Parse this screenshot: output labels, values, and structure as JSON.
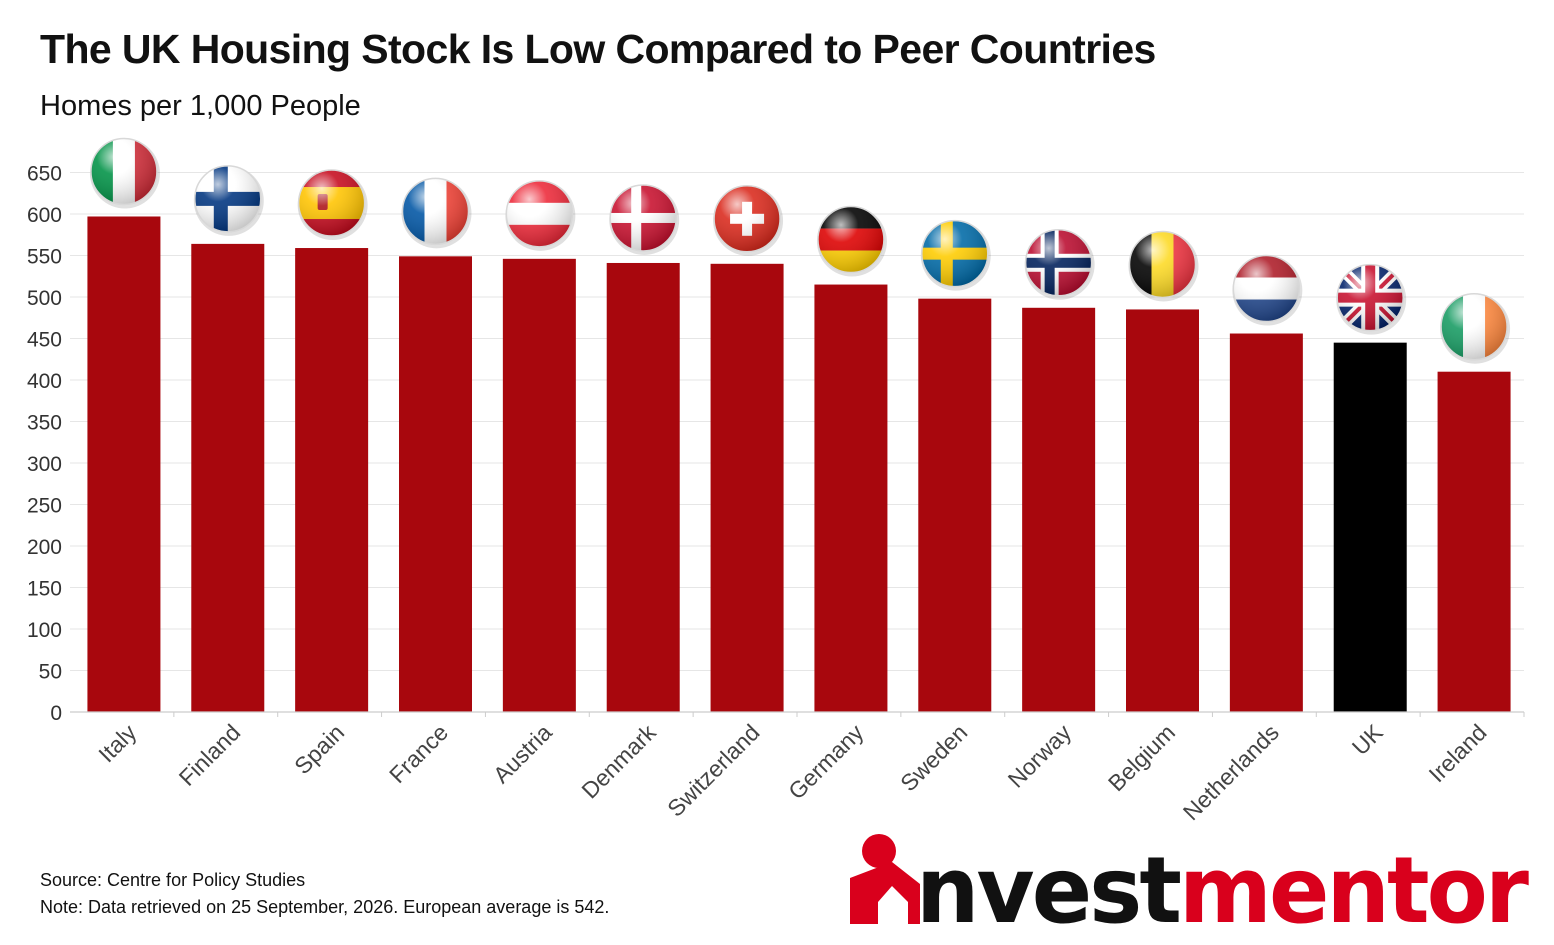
{
  "title": "The UK Housing Stock Is Low Compared to Peer Countries",
  "subtitle": "Homes per 1,000 People",
  "source": "Source: Centre for Policy Studies",
  "note": "Note: Data retrieved on 25 September, 2026. European average is 542.",
  "logo": {
    "text": "nvestmentor",
    "highlight_color": "#d9001c",
    "text_color": "#111111"
  },
  "chart_data": {
    "type": "bar",
    "categories": [
      "Italy",
      "Finland",
      "Spain",
      "France",
      "Austria",
      "Denmark",
      "Switzerland",
      "Germany",
      "Sweden",
      "Norway",
      "Belgium",
      "Netherlands",
      "UK",
      "Ireland"
    ],
    "values": [
      597,
      564,
      559,
      549,
      546,
      541,
      540,
      515,
      498,
      487,
      485,
      456,
      445,
      410
    ],
    "bar_colors": [
      "#a8070d",
      "#a8070d",
      "#a8070d",
      "#a8070d",
      "#a8070d",
      "#a8070d",
      "#a8070d",
      "#a8070d",
      "#a8070d",
      "#a8070d",
      "#a8070d",
      "#a8070d",
      "#000000",
      "#a8070d"
    ],
    "flag_icons": [
      "italy-flag-icon",
      "finland-flag-icon",
      "spain-flag-icon",
      "france-flag-icon",
      "austria-flag-icon",
      "denmark-flag-icon",
      "switzerland-flag-icon",
      "germany-flag-icon",
      "sweden-flag-icon",
      "norway-flag-icon",
      "belgium-flag-icon",
      "netherlands-flag-icon",
      "uk-flag-icon",
      "ireland-flag-icon"
    ],
    "yticks": [
      0,
      50,
      100,
      150,
      200,
      250,
      300,
      350,
      400,
      450,
      500,
      550,
      600,
      650
    ],
    "ylim": [
      0,
      650
    ],
    "grid": true,
    "xlabel": "",
    "ylabel": ""
  }
}
